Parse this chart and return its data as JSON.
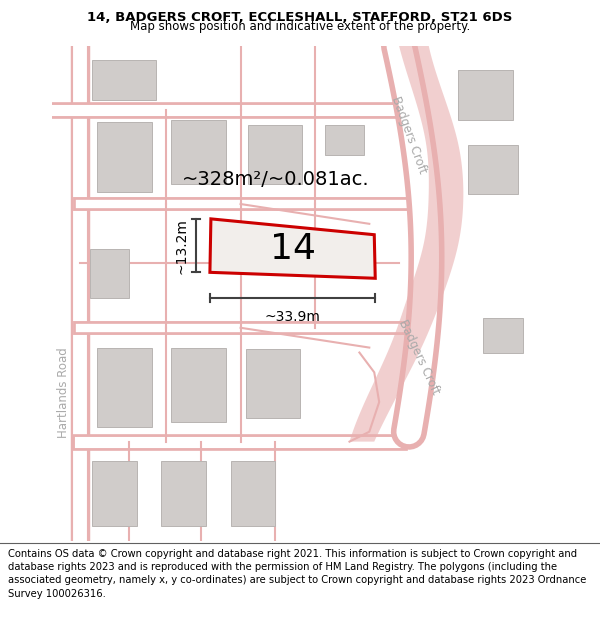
{
  "title_line1": "14, BADGERS CROFT, ECCLESHALL, STAFFORD, ST21 6DS",
  "title_line2": "Map shows position and indicative extent of the property.",
  "footer_text": "Contains OS data © Crown copyright and database right 2021. This information is subject to Crown copyright and database rights 2023 and is reproduced with the permission of HM Land Registry. The polygons (including the associated geometry, namely x, y co-ordinates) are subject to Crown copyright and database rights 2023 Ordnance Survey 100026316.",
  "area_label": "~328m²/~0.081ac.",
  "number_label": "14",
  "width_label": "~33.9m",
  "height_label": "~13.2m",
  "road_label_bc_upper": "Badgers Croft",
  "road_label_bc_lower": "Badgers Croft",
  "road_label_hr": "Hartlands Road",
  "map_bg": "#f2eeeb",
  "plot_color": "#cc0000",
  "road_pink": "#e8b0b0",
  "road_light": "#f0dada",
  "building_color": "#d0ccca",
  "building_edge": "#b8b4b2",
  "dim_color": "#404040",
  "label_color": "#aaaaaa",
  "title_fontsize": 9.5,
  "subtitle_fontsize": 8.5,
  "footer_fontsize": 7.2,
  "title_bold": true
}
